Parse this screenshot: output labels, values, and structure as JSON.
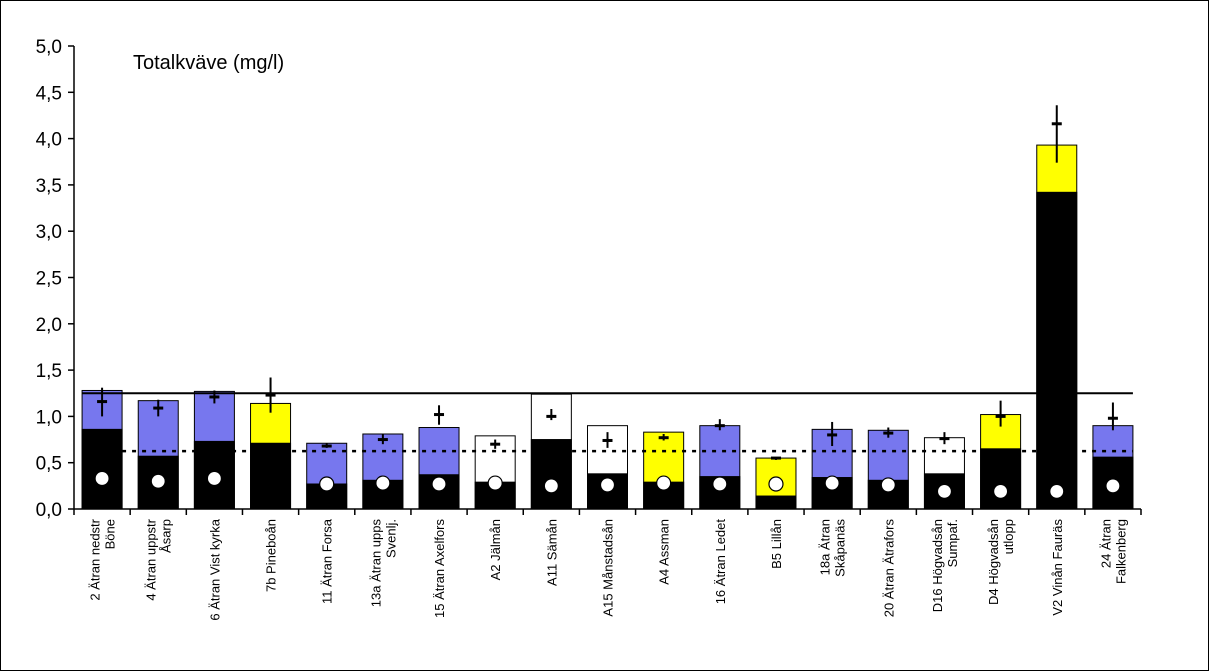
{
  "chart_data": {
    "type": "bar",
    "title": "Totalkväve (mg/l)",
    "xlabel": "",
    "ylabel": "",
    "ylim": [
      0,
      5
    ],
    "yticks": [
      "0,0",
      "0,5",
      "1,0",
      "1,5",
      "2,0",
      "2,5",
      "3,0",
      "3,5",
      "4,0",
      "4,5",
      "5,0"
    ],
    "grid": false,
    "legend": "none",
    "colors": {
      "blue": "#7777ee",
      "yellow": "#ffff00",
      "white": "#ffffff",
      "black": "#000000"
    },
    "reference_lines": [
      {
        "style": "solid",
        "value": 1.25
      },
      {
        "style": "dotted",
        "value": 0.625
      }
    ],
    "categories": [
      [
        "2 Ätran nedstr",
        "Böne"
      ],
      [
        "4 Ätran uppstr",
        "Åsarp"
      ],
      [
        "6 Ätran Vist kyrka"
      ],
      [
        "7b Pineboån"
      ],
      [
        "11 Ätran Forsa"
      ],
      [
        "13a Ätran upps",
        "Svenlj."
      ],
      [
        "15 Ätran Axelfors"
      ],
      [
        "A2 Jälmån"
      ],
      [
        "A11 Sämån"
      ],
      [
        "A15 Månstadsån"
      ],
      [
        "A4 Assman"
      ],
      [
        "16 Ätran Ledet"
      ],
      [
        "B5 Lillån"
      ],
      [
        "18a Ätran",
        "Skåpanäs"
      ],
      [
        "20 Ätran Ätrafors"
      ],
      [
        "D16 Högvadsån",
        "Sumpaf."
      ],
      [
        "D4 Högvadsån",
        "utlopp"
      ],
      [
        "V2 Vinån Fauräs"
      ],
      [
        "24 Ätran",
        "Falkenberg"
      ]
    ],
    "series": [
      {
        "values": [
          0.86,
          0.57,
          0.73,
          0.71,
          0.27,
          0.31,
          0.37,
          0.29,
          0.75,
          0.38,
          0.29,
          0.35,
          0.14,
          0.34,
          0.31,
          0.38,
          0.65,
          3.42,
          0.56
        ]
      },
      {
        "values": [
          1.28,
          1.17,
          1.27,
          1.14,
          0.71,
          0.81,
          0.88,
          0.79,
          1.24,
          0.9,
          0.83,
          0.9,
          0.55,
          0.86,
          0.85,
          0.77,
          1.02,
          3.93,
          0.9
        ],
        "colors": [
          "blue",
          "blue",
          "blue",
          "yellow",
          "blue",
          "blue",
          "blue",
          "white",
          "white",
          "white",
          "yellow",
          "blue",
          "yellow",
          "blue",
          "blue",
          "white",
          "yellow",
          "yellow",
          "blue"
        ]
      },
      {
        "values": [
          0.33,
          0.3,
          0.33,
          null,
          0.27,
          0.28,
          0.27,
          0.28,
          0.25,
          0.26,
          0.28,
          0.27,
          0.27,
          0.28,
          0.26,
          0.19,
          0.19,
          0.19,
          0.25
        ]
      },
      {
        "values": [
          1.16,
          1.09,
          1.21,
          1.23,
          0.68,
          0.75,
          1.02,
          0.7,
          1.0,
          0.74,
          0.77,
          0.9,
          0.55,
          0.8,
          0.82,
          0.76,
          1.0,
          4.16,
          0.98
        ],
        "low": [
          1.0,
          1.0,
          1.14,
          1.04,
          0.66,
          0.7,
          0.91,
          0.65,
          0.96,
          0.66,
          0.74,
          0.85,
          0.53,
          0.68,
          0.77,
          0.7,
          0.89,
          3.74,
          0.85
        ],
        "high": [
          1.31,
          1.18,
          1.28,
          1.42,
          0.71,
          0.81,
          1.12,
          0.75,
          1.08,
          0.83,
          0.81,
          0.97,
          0.56,
          0.94,
          0.88,
          0.83,
          1.17,
          4.36,
          1.15
        ]
      }
    ]
  }
}
